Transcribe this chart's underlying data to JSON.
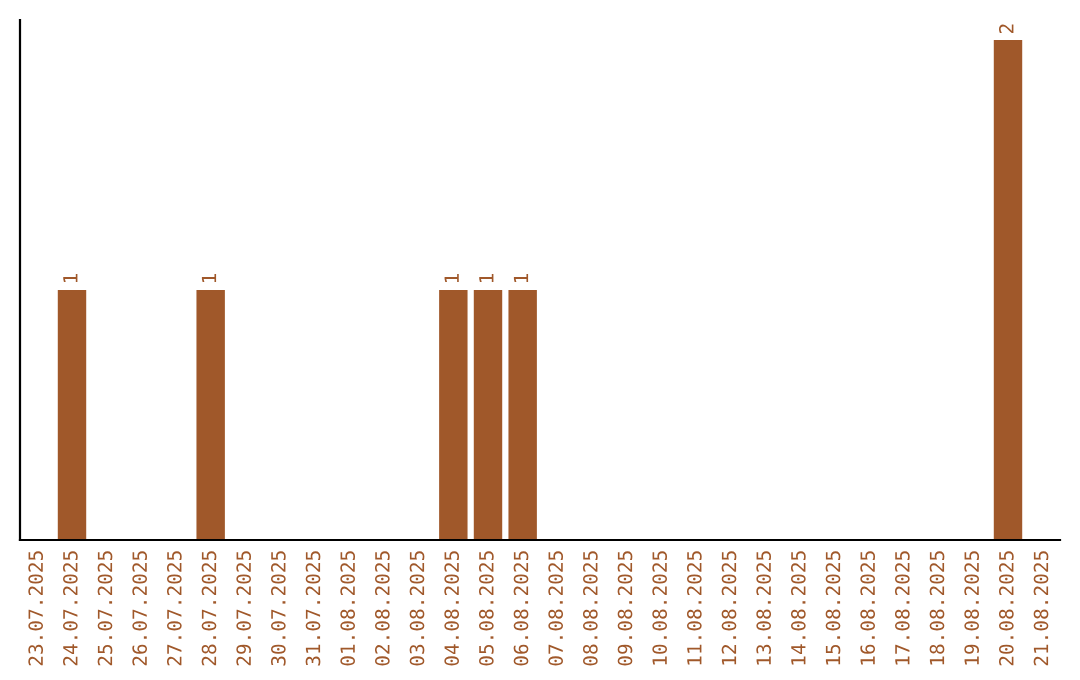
{
  "chart_data": {
    "type": "bar",
    "categories": [
      "23.07.2025",
      "24.07.2025",
      "25.07.2025",
      "26.07.2025",
      "27.07.2025",
      "28.07.2025",
      "29.07.2025",
      "30.07.2025",
      "31.07.2025",
      "01.08.2025",
      "02.08.2025",
      "03.08.2025",
      "04.08.2025",
      "05.08.2025",
      "06.08.2025",
      "07.08.2025",
      "08.08.2025",
      "09.08.2025",
      "10.08.2025",
      "11.08.2025",
      "12.08.2025",
      "13.08.2025",
      "14.08.2025",
      "15.08.2025",
      "16.08.2025",
      "17.08.2025",
      "18.08.2025",
      "19.08.2025",
      "20.08.2025",
      "21.08.2025"
    ],
    "values": [
      0,
      1,
      0,
      0,
      0,
      1,
      0,
      0,
      0,
      0,
      0,
      0,
      1,
      1,
      1,
      0,
      0,
      0,
      0,
      0,
      0,
      0,
      0,
      0,
      0,
      0,
      0,
      0,
      2,
      0
    ],
    "value_labels": [
      null,
      "1",
      null,
      null,
      null,
      "1",
      null,
      null,
      null,
      null,
      null,
      null,
      "1",
      "1",
      "1",
      null,
      null,
      null,
      null,
      null,
      null,
      null,
      null,
      null,
      null,
      null,
      null,
      null,
      "2",
      null
    ],
    "color": "#a0582a",
    "tick_labels": "x",
    "grid": false,
    "legend": false
  }
}
